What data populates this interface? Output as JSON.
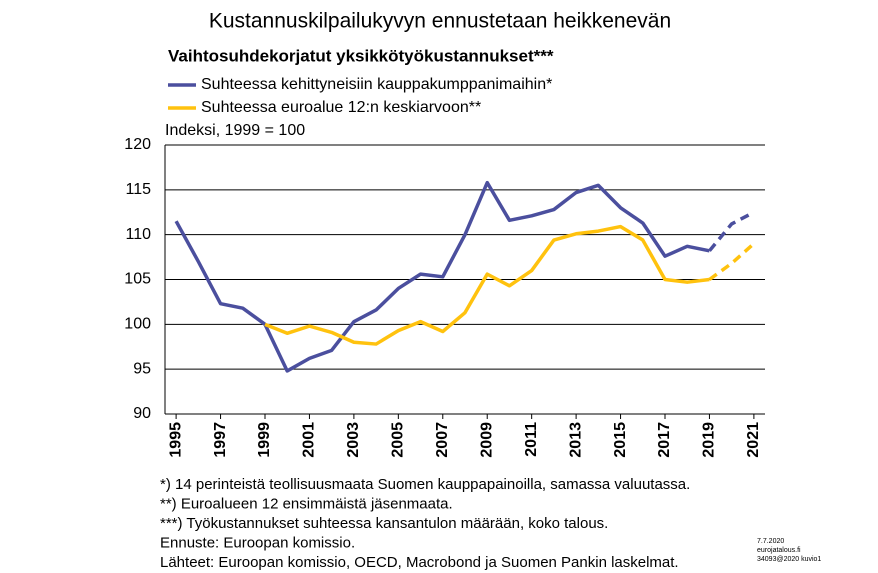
{
  "chart_data": {
    "type": "line",
    "title": "Kustannuskilpailukyvyn ennustetaan heikkenevän",
    "subtitle": "Vaihtosuhdekorjatut yksikkötyökustannukset***",
    "y_label": "Indeksi, 1999 = 100",
    "x": [
      1995,
      1996,
      1997,
      1998,
      1999,
      2000,
      2001,
      2002,
      2003,
      2004,
      2005,
      2006,
      2007,
      2008,
      2009,
      2010,
      2011,
      2012,
      2013,
      2014,
      2015,
      2016,
      2017,
      2018,
      2019,
      2020,
      2021
    ],
    "series": [
      {
        "name": "Suhteessa kehittyneisiin kauppakumppanimaihin*",
        "color": "#4b4f9e",
        "values": [
          111.5,
          107,
          102.3,
          101.8,
          100,
          94.8,
          96.2,
          97.1,
          100.3,
          101.6,
          104,
          105.6,
          105.3,
          110,
          115.8,
          111.6,
          112.1,
          112.8,
          114.7,
          115.5,
          113,
          111.3,
          107.6,
          108.7,
          108.2,
          111.2,
          112.5
        ]
      },
      {
        "name": "Suhteessa euroalue 12:n keskiarvoon**",
        "color": "#ffc20e",
        "values": [
          null,
          null,
          null,
          null,
          100,
          99,
          99.8,
          99.1,
          98,
          97.8,
          99.3,
          100.3,
          99.2,
          101.3,
          105.6,
          104.3,
          106,
          109.4,
          110.1,
          110.4,
          110.9,
          109.4,
          105,
          104.7,
          105,
          106.8,
          109
        ]
      }
    ],
    "dashed_from": 2019,
    "xlim": [
      1994.5,
      2021.5
    ],
    "xticks": [
      1995,
      1997,
      1999,
      2001,
      2003,
      2005,
      2007,
      2009,
      2011,
      2013,
      2015,
      2017,
      2019,
      2021
    ],
    "ylim": [
      90,
      120
    ],
    "yticks": [
      90,
      95,
      100,
      105,
      110,
      115,
      120
    ],
    "grid": true,
    "notes": [
      "*) 14 perinteistä teollisuusmaata  Suomen kauppapainoilla, samassa valuutassa.",
      "**) Euroalueen 12 ensimmäistä jäsenmaata.",
      "***) Työkustannukset  suhteessa kansantulon määrään, koko talous.",
      "Ennuste:  Euroopan komissio.",
      "Lähteet:  Euroopan komissio, OECD, Macrobond ja Suomen Pankin laskelmat."
    ],
    "corner": [
      "7.7.2020",
      "eurojatalous.fi",
      "34093@2020  kuvio1"
    ]
  }
}
